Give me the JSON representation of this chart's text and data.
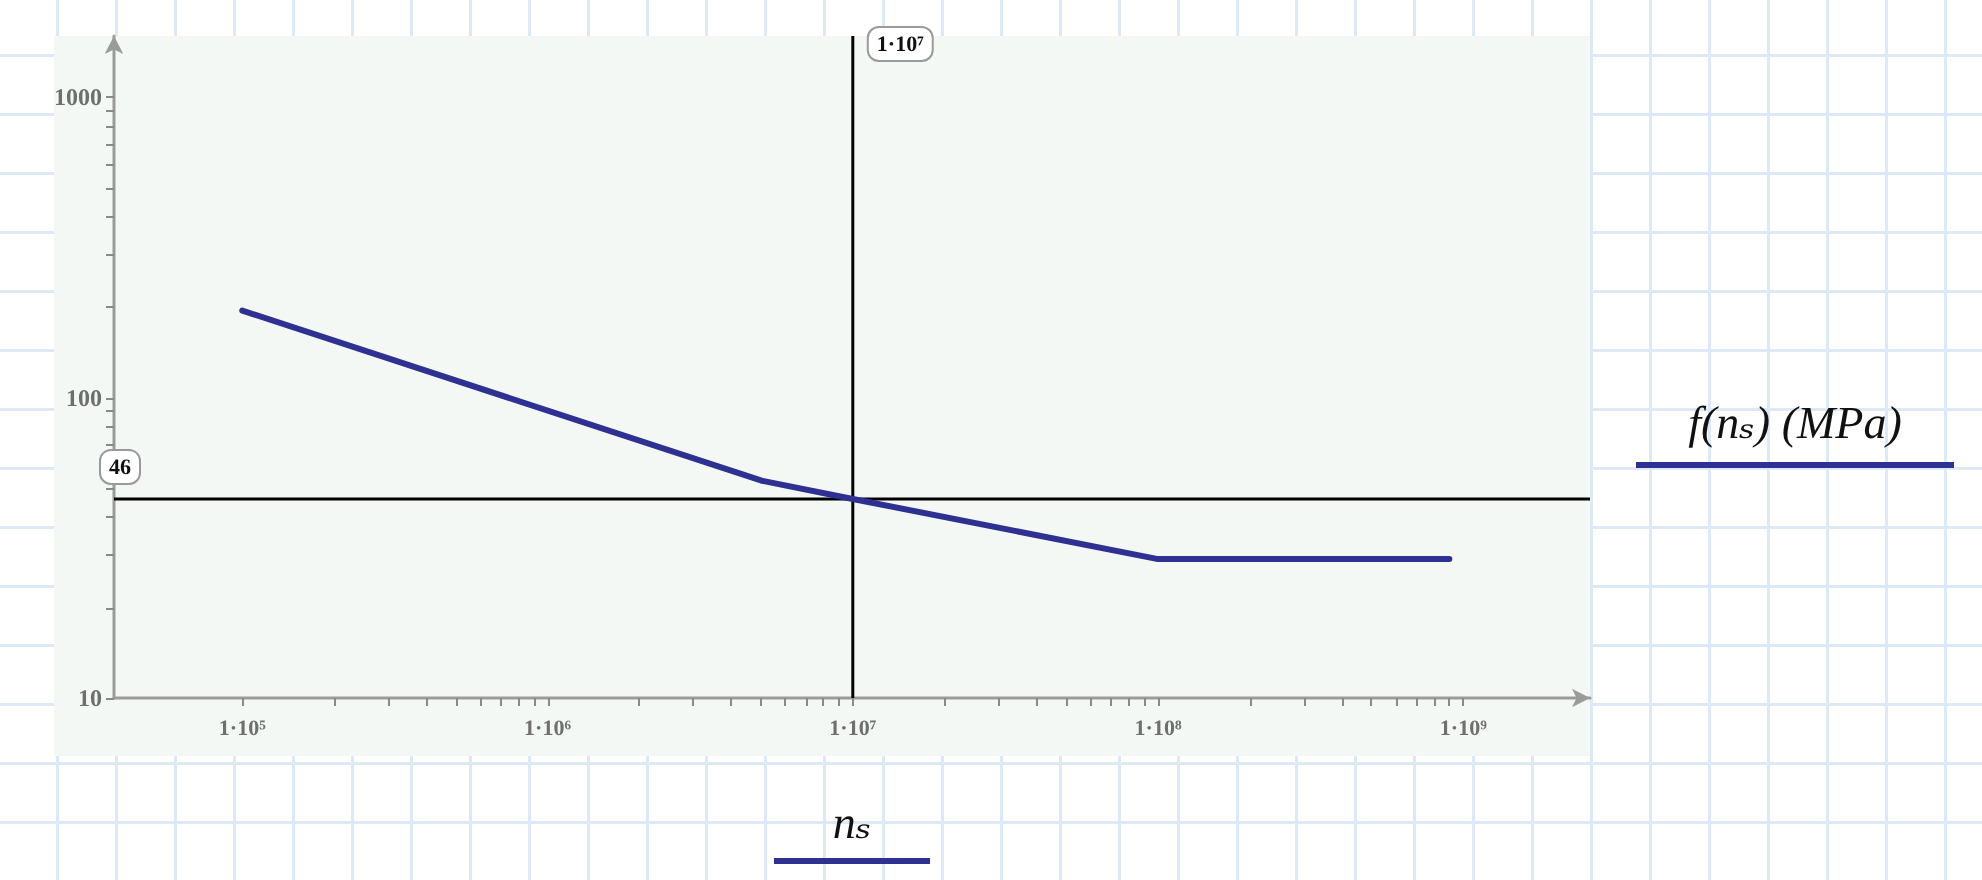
{
  "chart_data": {
    "type": "line",
    "xlabel": "nₛ",
    "ylabel": "f(nₛ) (MPa)",
    "log": "xy",
    "x": [
      100000,
      5000000,
      10000000,
      100000000,
      900000000
    ],
    "series": [
      {
        "color": "#2e3192",
        "values": [
          195,
          53,
          46,
          29,
          29
        ]
      }
    ],
    "xlim": [
      38000,
      2600000000
    ],
    "ylim": [
      10,
      1600
    ],
    "xticks": [
      {
        "value": 100000,
        "label": "1·10⁵"
      },
      {
        "value": 200000,
        "label": null
      },
      {
        "value": 300000,
        "label": null
      },
      {
        "value": 400000,
        "label": null
      },
      {
        "value": 500000,
        "label": null
      },
      {
        "value": 600000,
        "label": null
      },
      {
        "value": 700000,
        "label": null
      },
      {
        "value": 800000,
        "label": null
      },
      {
        "value": 900000,
        "label": null
      },
      {
        "value": 1000000,
        "label": "1·10⁶"
      },
      {
        "value": 2000000,
        "label": null
      },
      {
        "value": 3000000,
        "label": null
      },
      {
        "value": 4000000,
        "label": null
      },
      {
        "value": 5000000,
        "label": null
      },
      {
        "value": 6000000,
        "label": null
      },
      {
        "value": 7000000,
        "label": null
      },
      {
        "value": 8000000,
        "label": null
      },
      {
        "value": 9000000,
        "label": null
      },
      {
        "value": 10000000,
        "label": "1·10⁷"
      },
      {
        "value": 20000000,
        "label": null
      },
      {
        "value": 30000000,
        "label": null
      },
      {
        "value": 40000000,
        "label": null
      },
      {
        "value": 50000000,
        "label": null
      },
      {
        "value": 60000000,
        "label": null
      },
      {
        "value": 70000000,
        "label": null
      },
      {
        "value": 80000000,
        "label": null
      },
      {
        "value": 90000000,
        "label": null
      },
      {
        "value": 100000000,
        "label": "1·10⁸"
      },
      {
        "value": 200000000,
        "label": null
      },
      {
        "value": 300000000,
        "label": null
      },
      {
        "value": 400000000,
        "label": null
      },
      {
        "value": 500000000,
        "label": null
      },
      {
        "value": 600000000,
        "label": null
      },
      {
        "value": 700000000,
        "label": null
      },
      {
        "value": 800000000,
        "label": null
      },
      {
        "value": 900000000,
        "label": null
      },
      {
        "value": 1000000000,
        "label": "1·10⁹"
      }
    ],
    "yticks": [
      10,
      {
        "value": 20,
        "label": null
      },
      {
        "value": 30,
        "label": null
      },
      {
        "value": 40,
        "label": null
      },
      {
        "value": 50,
        "label": null
      },
      {
        "value": 60,
        "label": null
      },
      {
        "value": 70,
        "label": null
      },
      {
        "value": 80,
        "label": null
      },
      {
        "value": 90,
        "label": null
      },
      100,
      {
        "value": 200,
        "label": null
      },
      {
        "value": 300,
        "label": null
      },
      {
        "value": 400,
        "label": null
      },
      {
        "value": 500,
        "label": null
      },
      {
        "value": 600,
        "label": null
      },
      {
        "value": 700,
        "label": null
      },
      {
        "value": 800,
        "label": null
      },
      {
        "value": 900,
        "label": null
      },
      1000
    ],
    "ref_lines": [
      {
        "axis": "y",
        "value": 46,
        "label": "46",
        "color": "#000000"
      },
      {
        "axis": "x",
        "value": 10000000,
        "label": "1·10⁷",
        "color": "#000000"
      }
    ]
  }
}
